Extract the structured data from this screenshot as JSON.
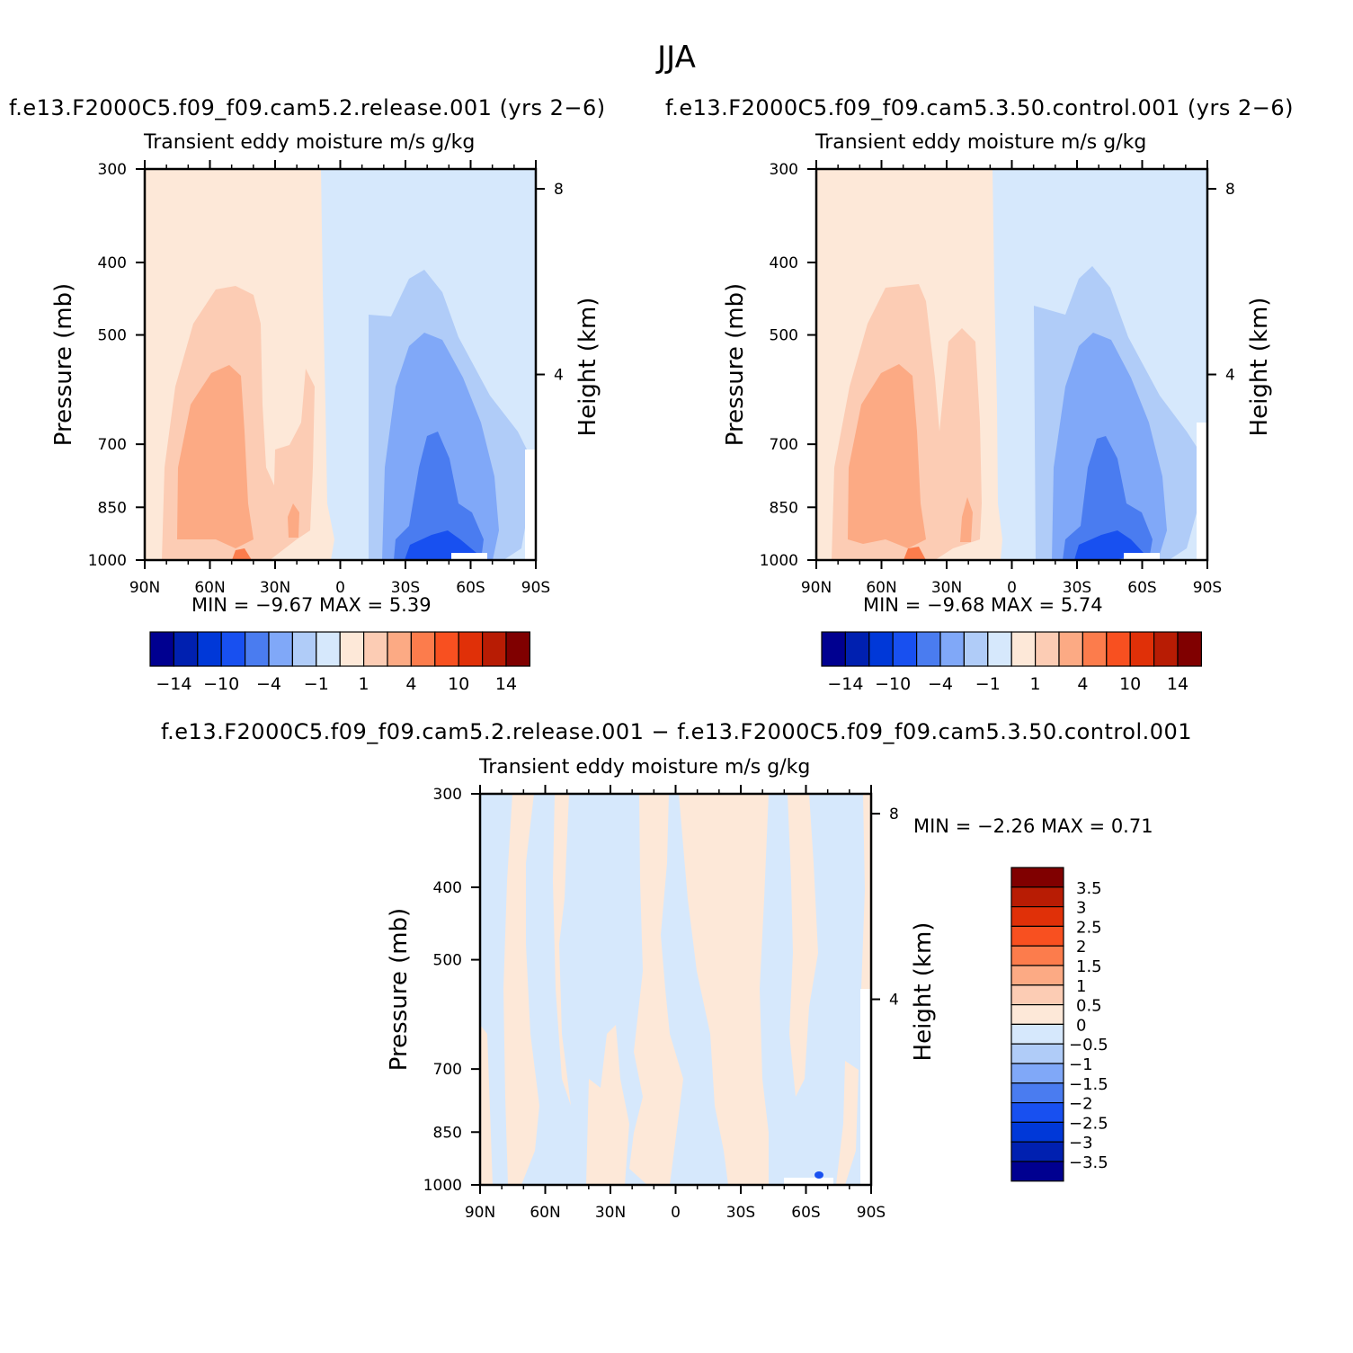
{
  "title": "JJA",
  "panels": [
    {
      "id": "case1",
      "run_title": "f.e13.F2000C5.f09_f09.cam5.2.release.001  (yrs  2−6)",
      "var_title": "Transient  eddy  moisture m/s  g/kg",
      "ylabel": "Pressure  (mb)",
      "y2label": "Height  (km)",
      "minmax": "MIN  =    −9.67    MAX  =       5.39"
    },
    {
      "id": "case2",
      "run_title": "f.e13.F2000C5.f09_f09.cam5.3.50.control.001  (yrs  2−6)",
      "var_title": "Transient  eddy  moisture m/s  g/kg",
      "ylabel": "Pressure  (mb)",
      "y2label": "Height  (km)",
      "minmax": "MIN  =    −9.68    MAX  =       5.74"
    },
    {
      "id": "diff",
      "run_title": "f.e13.F2000C5.f09_f09.cam5.2.release.001  −  f.e13.F2000C5.f09_f09.cam5.3.50.control.001",
      "var_title": "Transient  eddy  moisture m/s  g/kg",
      "ylabel": "Pressure  (mb)",
      "y2label": "Height  (km)",
      "minmax": "MIN  =    −2.26    MAX  =      0.71"
    }
  ],
  "colors": {
    "main_scale": [
      "#000090",
      "#0020b0",
      "#0038d8",
      "#1850f0",
      "#4a7cf0",
      "#80a8f8",
      "#b0ccf8",
      "#d6e8fc",
      "#fde8d8",
      "#fcccb4",
      "#fcaa84",
      "#fc7c4c",
      "#f85020",
      "#e03008",
      "#b81c04",
      "#800000"
    ],
    "diff_scale": [
      "#000090",
      "#0020b0",
      "#0038d8",
      "#1850f0",
      "#4a7cf0",
      "#80a8f8",
      "#b0ccf8",
      "#d6e8fc",
      "#fde8d8",
      "#fcccb4",
      "#fcaa84",
      "#fc7c4c",
      "#f85020",
      "#e03008",
      "#b81c04",
      "#800000"
    ]
  },
  "chart_data": [
    {
      "type": "heatmap",
      "title": "Transient  eddy  moisture m/s  g/kg",
      "xlabel": "",
      "ylabel": "Pressure  (mb)",
      "y2label": "Height  (km)",
      "x_ticks": [
        "90N",
        "60N",
        "30N",
        "0",
        "30S",
        "60S",
        "90S"
      ],
      "y_ticks": [
        300,
        400,
        500,
        700,
        850,
        1000
      ],
      "y2_ticks": [
        8,
        4
      ],
      "colorbar_labels": [
        "−14",
        "−10",
        "−4",
        "−1",
        "1",
        "4",
        "10",
        "14"
      ],
      "colorbar_levels": [
        -16,
        -14,
        -12,
        -10,
        -8,
        -4,
        -2,
        -1,
        0,
        1,
        2,
        4,
        8,
        10,
        12,
        14,
        16
      ],
      "min": -9.67,
      "max": 5.39
    },
    {
      "type": "heatmap",
      "title": "Transient  eddy  moisture m/s  g/kg",
      "xlabel": "",
      "ylabel": "Pressure  (mb)",
      "y2label": "Height  (km)",
      "x_ticks": [
        "90N",
        "60N",
        "30N",
        "0",
        "30S",
        "60S",
        "90S"
      ],
      "y_ticks": [
        300,
        400,
        500,
        700,
        850,
        1000
      ],
      "y2_ticks": [
        8,
        4
      ],
      "colorbar_labels": [
        "−14",
        "−10",
        "−4",
        "−1",
        "1",
        "4",
        "10",
        "14"
      ],
      "colorbar_levels": [
        -16,
        -14,
        -12,
        -10,
        -8,
        -4,
        -2,
        -1,
        0,
        1,
        2,
        4,
        8,
        10,
        12,
        14,
        16
      ],
      "min": -9.68,
      "max": 5.74
    },
    {
      "type": "heatmap",
      "title": "Transient  eddy  moisture m/s  g/kg",
      "xlabel": "",
      "ylabel": "Pressure  (mb)",
      "y2label": "Height  (km)",
      "x_ticks": [
        "90N",
        "60N",
        "30N",
        "0",
        "30S",
        "60S",
        "90S"
      ],
      "y_ticks": [
        300,
        400,
        500,
        700,
        850,
        1000
      ],
      "y2_ticks": [
        8,
        4
      ],
      "colorbar_labels": [
        "3.5",
        "3",
        "2.5",
        "2",
        "1.5",
        "1",
        "0.5",
        "0",
        "−0.5",
        "−1",
        "−1.5",
        "−2",
        "−2.5",
        "−3",
        "−3.5"
      ],
      "min": -2.26,
      "max": 0.71
    }
  ]
}
